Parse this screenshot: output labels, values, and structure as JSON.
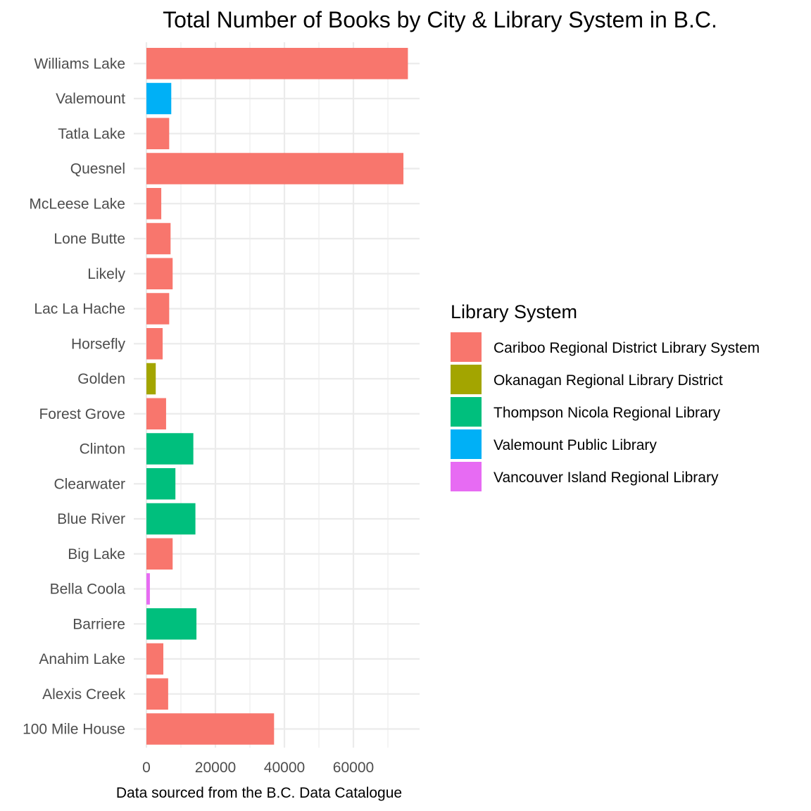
{
  "chart_data": {
    "type": "bar",
    "orientation": "horizontal",
    "title": "Total Number of Books by City & Library System in B.C.",
    "xlabel": "Data sourced from the B.C. Data Catalogue",
    "ylabel": "",
    "xlim": [
      0,
      80000
    ],
    "x_ticks": [
      0,
      20000,
      40000,
      60000
    ],
    "grid": true,
    "legend": {
      "title": "Library System",
      "position": "right",
      "entries": [
        {
          "name": "Cariboo Regional District Library System",
          "color": "#F8766D"
        },
        {
          "name": "Okanagan Regional Library District",
          "color": "#A3A500"
        },
        {
          "name": "Thompson Nicola Regional Library",
          "color": "#00BF7D"
        },
        {
          "name": "Valemount Public Library",
          "color": "#00B0F6"
        },
        {
          "name": "Vancouver Island Regional Library",
          "color": "#E76BF3"
        }
      ]
    },
    "categories": [
      "100 Mile House",
      "Alexis Creek",
      "Anahim Lake",
      "Barriere",
      "Bella Coola",
      "Big Lake",
      "Blue River",
      "Clearwater",
      "Clinton",
      "Forest Grove",
      "Golden",
      "Horsefly",
      "Lac La Hache",
      "Likely",
      "Lone Butte",
      "McLeese Lake",
      "Quesnel",
      "Tatla Lake",
      "Valemount",
      "Williams Lake"
    ],
    "values": [
      37000,
      6300,
      4900,
      14500,
      1000,
      7600,
      14200,
      8400,
      13600,
      5700,
      2700,
      4700,
      6600,
      7600,
      7000,
      4300,
      74500,
      6600,
      7200,
      75800
    ],
    "systems": [
      "Cariboo Regional District Library System",
      "Cariboo Regional District Library System",
      "Cariboo Regional District Library System",
      "Thompson Nicola Regional Library",
      "Vancouver Island Regional Library",
      "Cariboo Regional District Library System",
      "Thompson Nicola Regional Library",
      "Thompson Nicola Regional Library",
      "Thompson Nicola Regional Library",
      "Cariboo Regional District Library System",
      "Okanagan Regional Library District",
      "Cariboo Regional District Library System",
      "Cariboo Regional District Library System",
      "Cariboo Regional District Library System",
      "Cariboo Regional District Library System",
      "Cariboo Regional District Library System",
      "Cariboo Regional District Library System",
      "Cariboo Regional District Library System",
      "Valemount Public Library",
      "Cariboo Regional District Library System"
    ]
  }
}
